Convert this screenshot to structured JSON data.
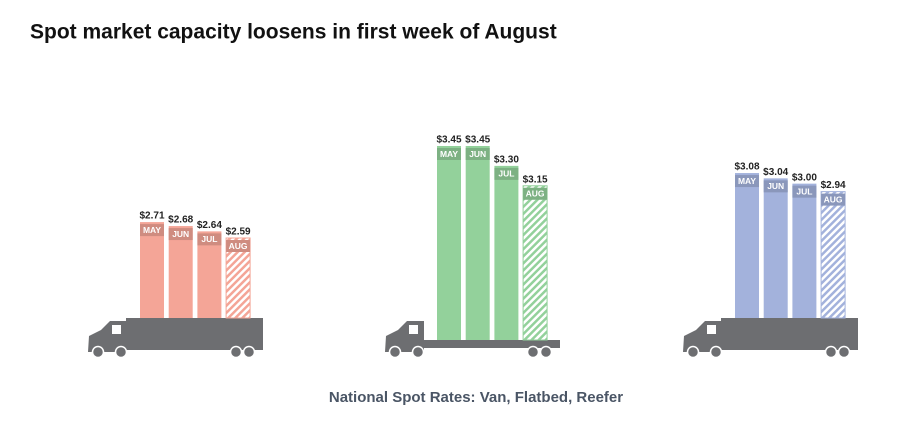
{
  "chart_data": {
    "type": "bar",
    "title": "Spot market capacity loosens in first week of August",
    "caption": "National Spot Rates: Van, Flatbed, Reefer",
    "categories": [
      "MAY",
      "JUN",
      "JUL",
      "AUG"
    ],
    "series": [
      {
        "color": "#f4a597",
        "values": [
          2.71,
          2.68,
          2.64,
          2.59
        ],
        "value_labels": [
          "$2.71",
          "$2.68",
          "$2.64",
          "$2.59"
        ]
      },
      {
        "color": "#93d19b",
        "values": [
          3.45,
          3.45,
          3.3,
          3.15
        ],
        "value_labels": [
          "$3.45",
          "$3.45",
          "$3.30",
          "$3.15"
        ]
      },
      {
        "color": "#a3b2dc",
        "values": [
          3.08,
          3.04,
          3.0,
          2.94
        ],
        "value_labels": [
          "$3.08",
          "$3.04",
          "$3.00",
          "$2.94"
        ]
      }
    ]
  }
}
